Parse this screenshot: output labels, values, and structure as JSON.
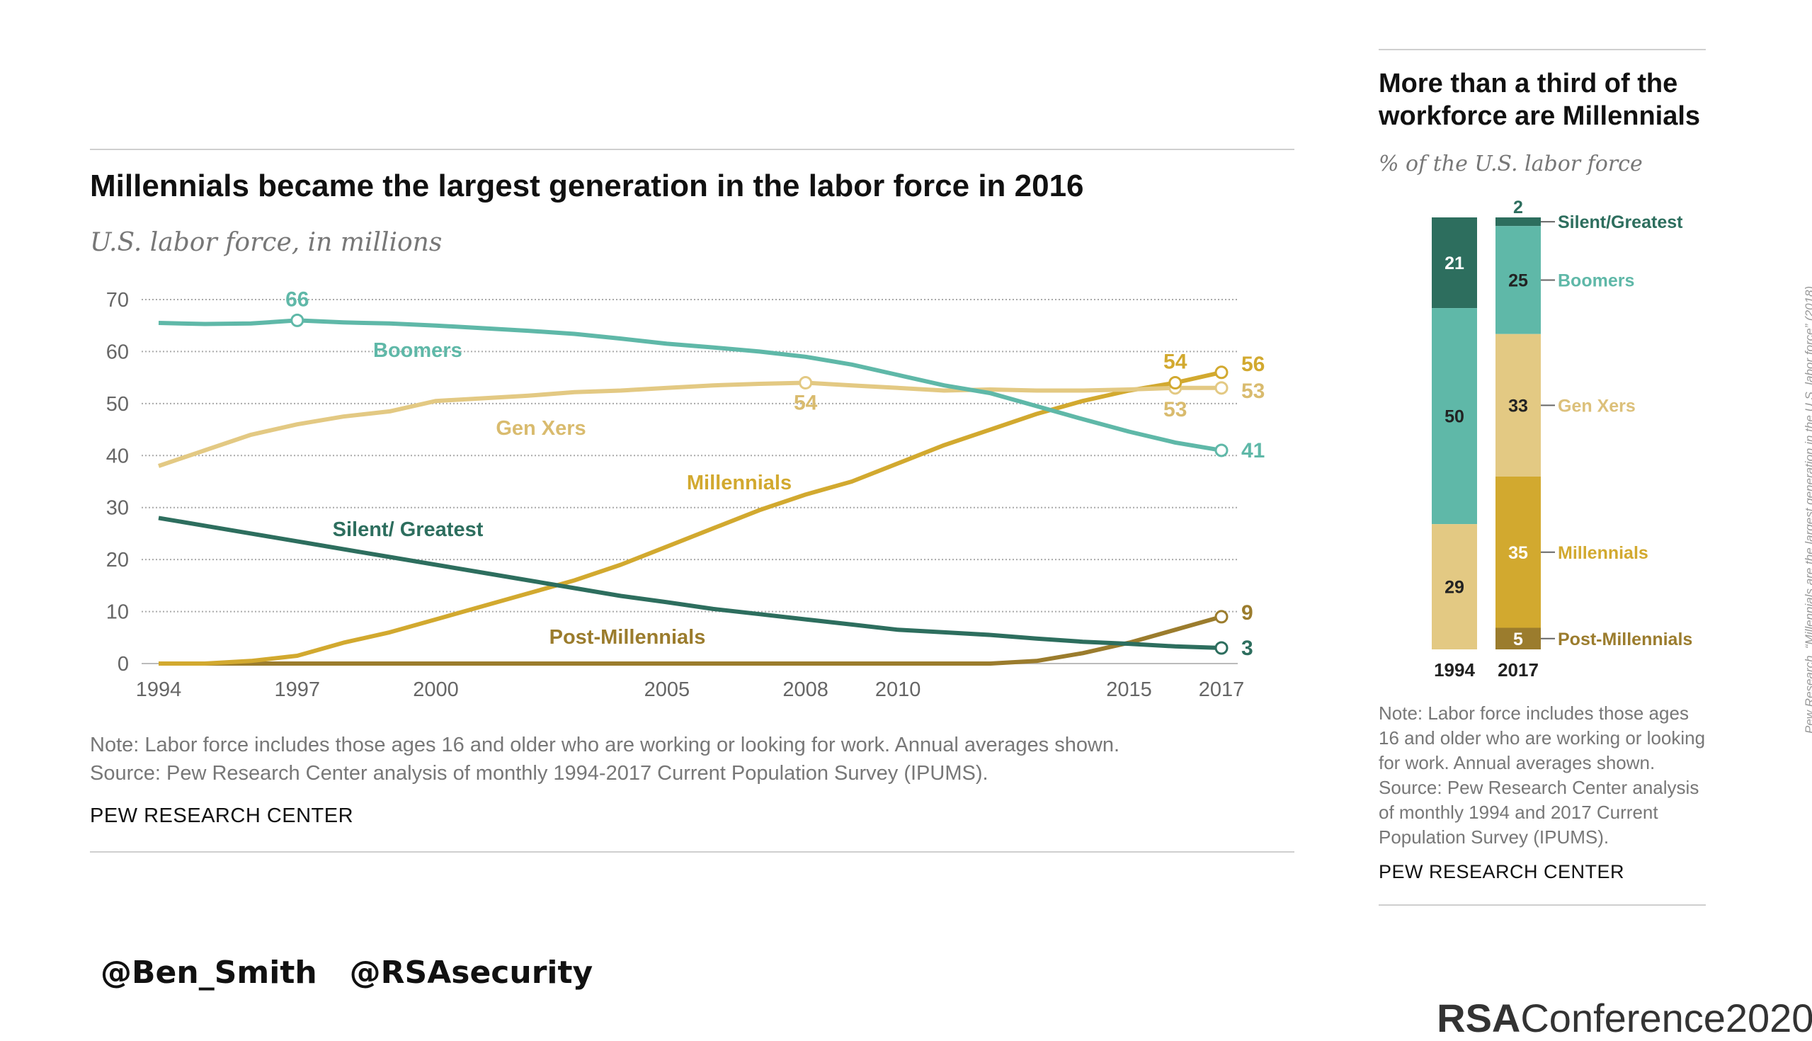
{
  "main_chart": {
    "title": "Millennials became the largest generation in the labor force in 2016",
    "subtitle": "U.S. labor force, in millions",
    "note": "Note: Labor force includes those ages 16 and older who are working or looking for work. Annual averages shown.",
    "source": "Source: Pew Research Center analysis of monthly 1994-2017 Current Population Survey (IPUMS).",
    "credit": "PEW RESEARCH CENTER"
  },
  "side_chart": {
    "title_line1": "More than a third of the",
    "title_line2": "workforce are Millennials",
    "subtitle": "% of the U.S. labor force",
    "note_lines": [
      "Note: Labor force includes those ages",
      "16 and older who are working or looking",
      "for work. Annual averages shown.",
      "Source: Pew Research Center analysis",
      "of monthly 1994 and 2017 Current",
      "Population Survey (IPUMS)."
    ],
    "credit": "PEW RESEARCH CENTER"
  },
  "footer": {
    "handles": "@Ben_Smith   @RSAsecurity",
    "brand_rsa": "RSA",
    "brand_conf": "Conference2020",
    "citation": "Pew Research, “Millennials are the largest generation in the U.S. labor force” (2018)"
  },
  "chart_data": [
    {
      "type": "line",
      "title": "Millennials became the largest generation in the labor force in 2016",
      "ylabel": "U.S. labor force, in millions",
      "ylim": [
        0,
        70
      ],
      "yticks": [
        0,
        10,
        20,
        30,
        40,
        50,
        60,
        70
      ],
      "xticks": [
        1994,
        1997,
        2000,
        2005,
        2008,
        2010,
        2015,
        2017
      ],
      "grid": true,
      "x": [
        1994,
        1995,
        1996,
        1997,
        1998,
        1999,
        2000,
        2001,
        2002,
        2003,
        2004,
        2005,
        2006,
        2007,
        2008,
        2009,
        2010,
        2011,
        2012,
        2013,
        2014,
        2015,
        2016,
        2017
      ],
      "series": [
        {
          "name": "Boomers",
          "color": "#5fb8a8",
          "values": [
            65.5,
            65.3,
            65.4,
            66,
            65.6,
            65.4,
            65,
            64.5,
            64,
            63.4,
            62.5,
            61.5,
            60.8,
            60,
            59,
            57.5,
            55.5,
            53.5,
            52,
            49.5,
            47,
            44.6,
            42.5,
            41
          ],
          "annotations": [
            {
              "x": 1997,
              "label": "66"
            },
            {
              "x": 2017,
              "label": "41"
            }
          ]
        },
        {
          "name": "Gen Xers",
          "color": "#e3c983",
          "values": [
            38,
            41,
            44,
            46,
            47.5,
            48.5,
            50.5,
            51,
            51.5,
            52.2,
            52.5,
            53,
            53.5,
            53.8,
            54,
            53.5,
            53,
            52.5,
            52.7,
            52.5,
            52.5,
            52.7,
            53,
            53
          ],
          "annotations": [
            {
              "x": 2008,
              "label": "54"
            },
            {
              "x": 2016,
              "label": "53"
            },
            {
              "x": 2017,
              "label": "53"
            }
          ]
        },
        {
          "name": "Millennials",
          "color": "#d2a92f",
          "values": [
            0,
            0,
            0.5,
            1.5,
            4,
            6,
            8.5,
            11,
            13.5,
            16,
            19,
            22.5,
            26,
            29.5,
            32.5,
            35,
            38.5,
            42,
            45,
            48,
            50.5,
            52.5,
            54,
            56
          ],
          "annotations": [
            {
              "x": 2016,
              "label": "54"
            },
            {
              "x": 2017,
              "label": "56"
            }
          ]
        },
        {
          "name": "Silent/ Greatest",
          "color": "#2d6e5e",
          "values": [
            28,
            26.5,
            25,
            23.5,
            22,
            20.5,
            19,
            17.5,
            16,
            14.5,
            13,
            11.8,
            10.5,
            9.5,
            8.5,
            7.5,
            6.5,
            6,
            5.5,
            4.8,
            4.2,
            3.8,
            3.3,
            3
          ],
          "annotations": [
            {
              "x": 2017,
              "label": "3"
            }
          ]
        },
        {
          "name": "Post-Millennials",
          "color": "#9b7c2d",
          "values": [
            0,
            0,
            0,
            0,
            0,
            0,
            0,
            0,
            0,
            0,
            0,
            0,
            0,
            0,
            0,
            0,
            0,
            0,
            0,
            0.5,
            2,
            4,
            6.5,
            9
          ],
          "annotations": [
            {
              "x": 2017,
              "label": "9"
            }
          ]
        }
      ]
    },
    {
      "type": "bar",
      "stacked": true,
      "title": "More than a third of the workforce are Millennials",
      "ylabel": "% of the U.S. labor force",
      "categories": [
        "1994",
        "2017"
      ],
      "series": [
        {
          "name": "Silent/Greatest",
          "color": "#2d6e5e",
          "values": [
            21,
            2
          ]
        },
        {
          "name": "Boomers",
          "color": "#5fb8a8",
          "values": [
            50,
            25
          ]
        },
        {
          "name": "Gen Xers",
          "color": "#e3c983",
          "values": [
            29,
            33
          ]
        },
        {
          "name": "Millennials",
          "color": "#d2a92f",
          "values": [
            0,
            35
          ]
        },
        {
          "name": "Post-Millennials",
          "color": "#9b7c2d",
          "values": [
            0,
            5
          ]
        }
      ]
    }
  ]
}
